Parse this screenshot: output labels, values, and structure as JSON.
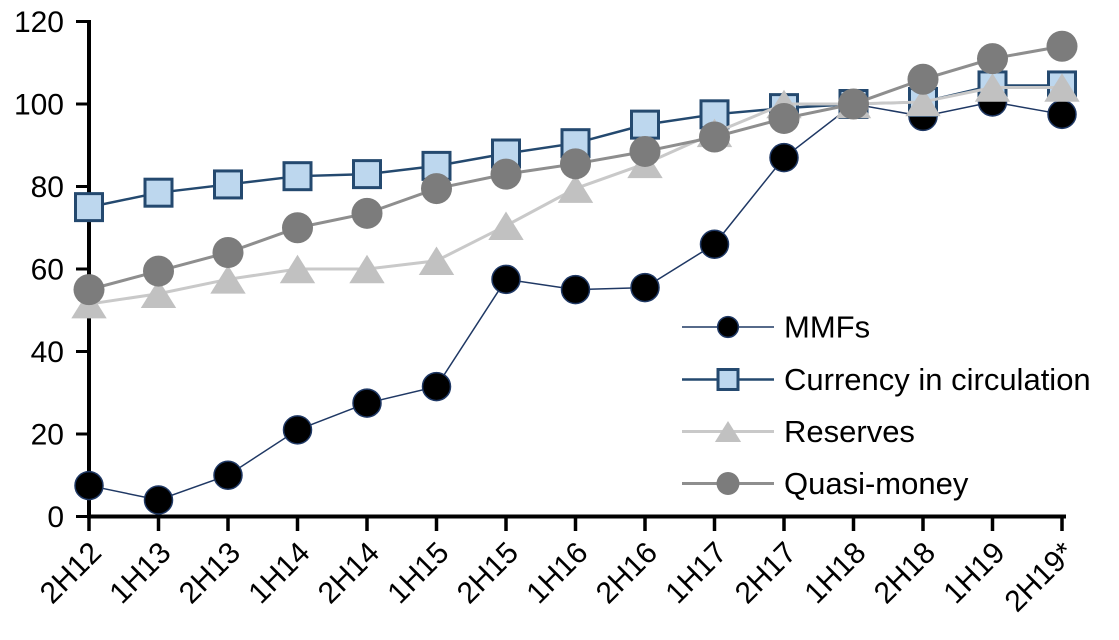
{
  "chart_data": {
    "type": "line",
    "title": "",
    "xlabel": "",
    "ylabel": "",
    "background": "#FFFFFF",
    "axis_color": "#000000",
    "grid": false,
    "ylim": [
      0,
      120
    ],
    "yticks": [
      0,
      20,
      40,
      60,
      80,
      100,
      120
    ],
    "legend_position": "inside-right",
    "categories": [
      "2H12",
      "1H13",
      "2H13",
      "1H14",
      "2H14",
      "1H15",
      "2H15",
      "1H16",
      "2H16",
      "1H17",
      "2H17",
      "1H18",
      "2H18",
      "1H19",
      "2H19*"
    ],
    "series": [
      {
        "name": "MMFs",
        "marker": "circle",
        "line_color": "#1F3864",
        "line_width": 1.5,
        "marker_fill": "#000000",
        "marker_stroke": "#1F3864",
        "marker_stroke_width": 1.5,
        "marker_size": 14,
        "values": [
          7.5,
          4,
          10,
          21,
          27.5,
          31.5,
          57.5,
          55,
          55.5,
          66,
          87,
          100,
          97,
          100.5,
          97.5
        ]
      },
      {
        "name": "Currency in circulation",
        "marker": "square",
        "line_color": "#24496F",
        "line_width": 2.5,
        "marker_fill": "#BDD7EE",
        "marker_stroke": "#24496F",
        "marker_stroke_width": 3,
        "marker_size": 13.5,
        "values": [
          75,
          78.5,
          80.5,
          82.5,
          83,
          85,
          88,
          90.5,
          95,
          97.5,
          99,
          100,
          100.5,
          104.5,
          104.5
        ]
      },
      {
        "name": "Reserves",
        "marker": "triangle",
        "line_color": "#C9C9C9",
        "line_width": 3,
        "marker_fill": "#C1C1C1",
        "marker_stroke": "none",
        "marker_stroke_width": 0,
        "marker_size": 15,
        "values": [
          51.5,
          54,
          57.5,
          60,
          60,
          62,
          70.5,
          79.5,
          85.5,
          93,
          100,
          100,
          100.5,
          104,
          104
        ]
      },
      {
        "name": "Quasi-money",
        "marker": "circle",
        "line_color": "#8E8E8E",
        "line_width": 3,
        "marker_fill": "#7C7C7C",
        "marker_stroke": "none",
        "marker_stroke_width": 0,
        "marker_size": 15.5,
        "values": [
          55,
          59.5,
          64,
          70,
          73.5,
          79.5,
          83,
          85.5,
          88.5,
          92,
          96.5,
          100,
          106,
          111,
          114
        ]
      }
    ]
  }
}
